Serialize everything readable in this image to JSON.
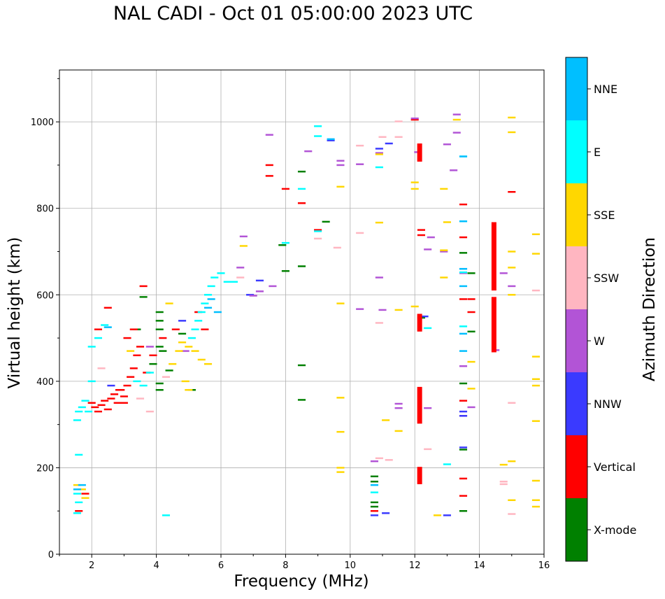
{
  "chart_data": {
    "type": "scatter",
    "title": "NAL CADI - Oct 01 05:00:00 2023 UTC",
    "xlabel": "Frequency (MHz)",
    "ylabel": "Virtual height (km)",
    "colorbar_label": "Azimuth Direction",
    "xlim": [
      1,
      16
    ],
    "ylim": [
      0,
      1120
    ],
    "xticks": [
      2,
      4,
      6,
      8,
      10,
      12,
      14,
      16
    ],
    "yticks": [
      0,
      200,
      400,
      600,
      800,
      1000
    ],
    "grid": true,
    "categories": [
      {
        "name": "X-mode",
        "color": "#008000"
      },
      {
        "name": "Vertical",
        "color": "#ff0000"
      },
      {
        "name": "NNW",
        "color": "#3a3aff"
      },
      {
        "name": "W",
        "color": "#b254d6"
      },
      {
        "name": "SSW",
        "color": "#ffb6c1"
      },
      {
        "name": "SSE",
        "color": "#ffd700"
      },
      {
        "name": "E",
        "color": "#00ffff"
      },
      {
        "name": "NNE",
        "color": "#00bfff"
      }
    ],
    "series": [
      {
        "name": "X-mode",
        "points": [
          [
            8.5,
            885
          ],
          [
            8.5,
            666
          ],
          [
            8.5,
            437
          ],
          [
            8.5,
            357
          ],
          [
            9.25,
            769
          ],
          [
            10.75,
            180
          ],
          [
            10.75,
            168
          ],
          [
            10.75,
            120
          ],
          [
            10.75,
            110
          ],
          [
            13.5,
            697
          ],
          [
            13.5,
            395
          ],
          [
            13.5,
            242
          ],
          [
            13.5,
            100
          ],
          [
            13.75,
            650
          ],
          [
            13.75,
            515
          ],
          [
            4.1,
            560
          ],
          [
            4.1,
            540
          ],
          [
            4.1,
            520
          ],
          [
            4.1,
            480
          ],
          [
            4.1,
            380
          ],
          [
            4.1,
            395
          ],
          [
            3.6,
            595
          ],
          [
            4.2,
            470
          ],
          [
            4.4,
            425
          ],
          [
            3.9,
            440
          ],
          [
            7.9,
            715
          ],
          [
            8.0,
            655
          ],
          [
            12.2,
            547
          ],
          [
            5.1,
            380
          ],
          [
            4.8,
            510
          ],
          [
            3.4,
            520
          ]
        ]
      },
      {
        "name": "Vertical",
        "points": [
          [
            2.0,
            350
          ],
          [
            2.1,
            340
          ],
          [
            2.2,
            330
          ],
          [
            2.3,
            345
          ],
          [
            2.4,
            355
          ],
          [
            2.5,
            335
          ],
          [
            2.6,
            360
          ],
          [
            2.7,
            370
          ],
          [
            2.8,
            350
          ],
          [
            2.9,
            380
          ],
          [
            3.0,
            365
          ],
          [
            3.1,
            390
          ],
          [
            3.2,
            410
          ],
          [
            3.3,
            430
          ],
          [
            3.4,
            460
          ],
          [
            3.5,
            480
          ],
          [
            3.1,
            500
          ],
          [
            3.3,
            520
          ],
          [
            3.0,
            350
          ],
          [
            2.85,
            380
          ],
          [
            3.7,
            420
          ],
          [
            3.9,
            460
          ],
          [
            4.2,
            500
          ],
          [
            4.6,
            520
          ],
          [
            2.2,
            520
          ],
          [
            2.5,
            570
          ],
          [
            1.6,
            100
          ],
          [
            1.8,
            140
          ],
          [
            3.6,
            620
          ],
          [
            7.5,
            900
          ],
          [
            7.5,
            875
          ],
          [
            8.0,
            845
          ],
          [
            8.5,
            812
          ],
          [
            9.0,
            750
          ],
          [
            12.2,
            750
          ],
          [
            12.2,
            738
          ],
          [
            13.5,
            809
          ],
          [
            13.5,
            733
          ],
          [
            13.5,
            590
          ],
          [
            13.5,
            355
          ],
          [
            13.5,
            320
          ],
          [
            13.5,
            175
          ],
          [
            13.5,
            135
          ],
          [
            13.75,
            590
          ],
          [
            13.75,
            560
          ],
          [
            15.0,
            838
          ],
          [
            10.75,
            100
          ],
          [
            12.0,
            1005
          ],
          [
            5.3,
            560
          ],
          [
            5.5,
            520
          ]
        ]
      },
      {
        "name": "NNW",
        "points": [
          [
            13.5,
            320
          ],
          [
            13.5,
            330
          ],
          [
            13.5,
            247
          ],
          [
            13.0,
            90
          ],
          [
            12.3,
            550
          ],
          [
            11.1,
            95
          ],
          [
            10.75,
            90
          ],
          [
            7.2,
            633
          ],
          [
            10.9,
            938
          ],
          [
            11.2,
            950
          ],
          [
            9.4,
            957
          ],
          [
            4.8,
            540
          ],
          [
            2.6,
            390
          ],
          [
            6.9,
            600
          ]
        ]
      },
      {
        "name": "W",
        "points": [
          [
            7.5,
            970
          ],
          [
            8.7,
            932
          ],
          [
            9.7,
            910
          ],
          [
            9.7,
            900
          ],
          [
            10.3,
            902
          ],
          [
            10.9,
            928
          ],
          [
            12.1,
            930
          ],
          [
            13.2,
            888
          ],
          [
            13.0,
            948
          ],
          [
            13.3,
            975
          ],
          [
            13.3,
            1017
          ],
          [
            12.0,
            1008
          ],
          [
            12.5,
            733
          ],
          [
            12.4,
            705
          ],
          [
            12.9,
            700
          ],
          [
            13.5,
            660
          ],
          [
            13.5,
            650
          ],
          [
            13.5,
            435
          ],
          [
            13.75,
            340
          ],
          [
            14.5,
            472
          ],
          [
            14.75,
            650
          ],
          [
            15.0,
            620
          ],
          [
            11.0,
            565
          ],
          [
            11.5,
            348
          ],
          [
            11.5,
            338
          ],
          [
            12.4,
            338
          ],
          [
            10.9,
            640
          ],
          [
            10.3,
            567
          ],
          [
            10.75,
            215
          ],
          [
            6.7,
            735
          ],
          [
            6.6,
            663
          ],
          [
            7.0,
            598
          ],
          [
            7.2,
            608
          ],
          [
            7.6,
            620
          ],
          [
            3.8,
            480
          ],
          [
            4.9,
            470
          ]
        ]
      },
      {
        "name": "SSW",
        "points": [
          [
            9.0,
            730
          ],
          [
            9.6,
            709
          ],
          [
            10.3,
            743
          ],
          [
            10.9,
            222
          ],
          [
            11.2,
            218
          ],
          [
            12.4,
            243
          ],
          [
            10.9,
            535
          ],
          [
            11.0,
            965
          ],
          [
            11.5,
            965
          ],
          [
            11.5,
            1001
          ],
          [
            10.3,
            945
          ],
          [
            14.75,
            168
          ],
          [
            14.75,
            162
          ],
          [
            15.0,
            350
          ],
          [
            15.0,
            93
          ],
          [
            15.75,
            610
          ],
          [
            6.6,
            640
          ],
          [
            3.5,
            360
          ],
          [
            3.8,
            330
          ],
          [
            4.3,
            410
          ],
          [
            2.3,
            430
          ]
        ]
      },
      {
        "name": "SSE",
        "points": [
          [
            9.7,
            850
          ],
          [
            9.7,
            580
          ],
          [
            9.7,
            362
          ],
          [
            9.7,
            283
          ],
          [
            9.7,
            200
          ],
          [
            9.7,
            190
          ],
          [
            10.9,
            767
          ],
          [
            11.1,
            310
          ],
          [
            11.5,
            285
          ],
          [
            11.5,
            565
          ],
          [
            12.0,
            860
          ],
          [
            12.0,
            573
          ],
          [
            12.0,
            845
          ],
          [
            12.9,
            845
          ],
          [
            13.0,
            768
          ],
          [
            12.9,
            703
          ],
          [
            12.9,
            640
          ],
          [
            13.3,
            1005
          ],
          [
            13.75,
            445
          ],
          [
            13.75,
            383
          ],
          [
            14.75,
            207
          ],
          [
            15.0,
            1010
          ],
          [
            15.0,
            976
          ],
          [
            15.0,
            700
          ],
          [
            15.0,
            663
          ],
          [
            15.0,
            600
          ],
          [
            15.0,
            215
          ],
          [
            15.0,
            125
          ],
          [
            15.75,
            740
          ],
          [
            15.75,
            695
          ],
          [
            15.75,
            457
          ],
          [
            15.75,
            405
          ],
          [
            15.75,
            390
          ],
          [
            15.75,
            308
          ],
          [
            15.75,
            170
          ],
          [
            15.75,
            125
          ],
          [
            15.75,
            110
          ],
          [
            12.7,
            90
          ],
          [
            10.9,
            925
          ],
          [
            6.7,
            713
          ],
          [
            4.5,
            440
          ],
          [
            4.7,
            470
          ],
          [
            4.8,
            490
          ],
          [
            5.0,
            480
          ],
          [
            5.2,
            470
          ],
          [
            5.4,
            450
          ],
          [
            5.6,
            440
          ],
          [
            4.9,
            400
          ],
          [
            5.0,
            380
          ],
          [
            3.2,
            470
          ],
          [
            4.4,
            580
          ],
          [
            1.7,
            150
          ],
          [
            1.8,
            130
          ],
          [
            1.55,
            160
          ]
        ]
      },
      {
        "name": "E",
        "points": [
          [
            9.0,
            990
          ],
          [
            9.0,
            967
          ],
          [
            10.9,
            895
          ],
          [
            8.5,
            845
          ],
          [
            8.0,
            720
          ],
          [
            9.0,
            747
          ],
          [
            13.5,
            920
          ],
          [
            13.5,
            770
          ],
          [
            13.5,
            652
          ],
          [
            13.5,
            527
          ],
          [
            13.0,
            208
          ],
          [
            12.4,
            523
          ],
          [
            10.75,
            143
          ],
          [
            4.3,
            90
          ],
          [
            1.55,
            310
          ],
          [
            1.6,
            330
          ],
          [
            1.7,
            340
          ],
          [
            1.8,
            355
          ],
          [
            1.9,
            330
          ],
          [
            2.0,
            400
          ],
          [
            2.2,
            500
          ],
          [
            2.4,
            530
          ],
          [
            2.0,
            480
          ],
          [
            1.6,
            230
          ],
          [
            1.55,
            140
          ],
          [
            1.6,
            120
          ],
          [
            1.55,
            95
          ],
          [
            5.6,
            600
          ],
          [
            5.7,
            620
          ],
          [
            5.8,
            640
          ],
          [
            5.5,
            580
          ],
          [
            5.4,
            560
          ],
          [
            5.3,
            540
          ],
          [
            5.2,
            520
          ],
          [
            5.1,
            500
          ],
          [
            6.0,
            650
          ],
          [
            6.2,
            630
          ],
          [
            6.4,
            630
          ],
          [
            3.4,
            400
          ],
          [
            3.6,
            390
          ],
          [
            3.8,
            420
          ]
        ]
      },
      {
        "name": "NNE",
        "points": [
          [
            9.4,
            960
          ],
          [
            13.5,
            920
          ],
          [
            13.5,
            770
          ],
          [
            13.5,
            660
          ],
          [
            13.5,
            620
          ],
          [
            13.5,
            510
          ],
          [
            13.5,
            470
          ],
          [
            10.75,
            160
          ],
          [
            1.55,
            150
          ],
          [
            1.7,
            160
          ],
          [
            2.5,
            525
          ],
          [
            5.7,
            590
          ],
          [
            5.9,
            560
          ],
          [
            5.6,
            570
          ]
        ]
      }
    ],
    "bars": [
      {
        "name": "Vertical",
        "x": 12.15,
        "y0": 908,
        "y1": 950
      },
      {
        "name": "Vertical",
        "x": 12.15,
        "y0": 515,
        "y1": 556
      },
      {
        "name": "Vertical",
        "x": 12.15,
        "y0": 302,
        "y1": 387
      },
      {
        "name": "Vertical",
        "x": 12.15,
        "y0": 162,
        "y1": 202
      },
      {
        "name": "Vertical",
        "x": 14.45,
        "y0": 610,
        "y1": 768
      },
      {
        "name": "Vertical",
        "x": 14.45,
        "y0": 467,
        "y1": 595
      }
    ]
  }
}
